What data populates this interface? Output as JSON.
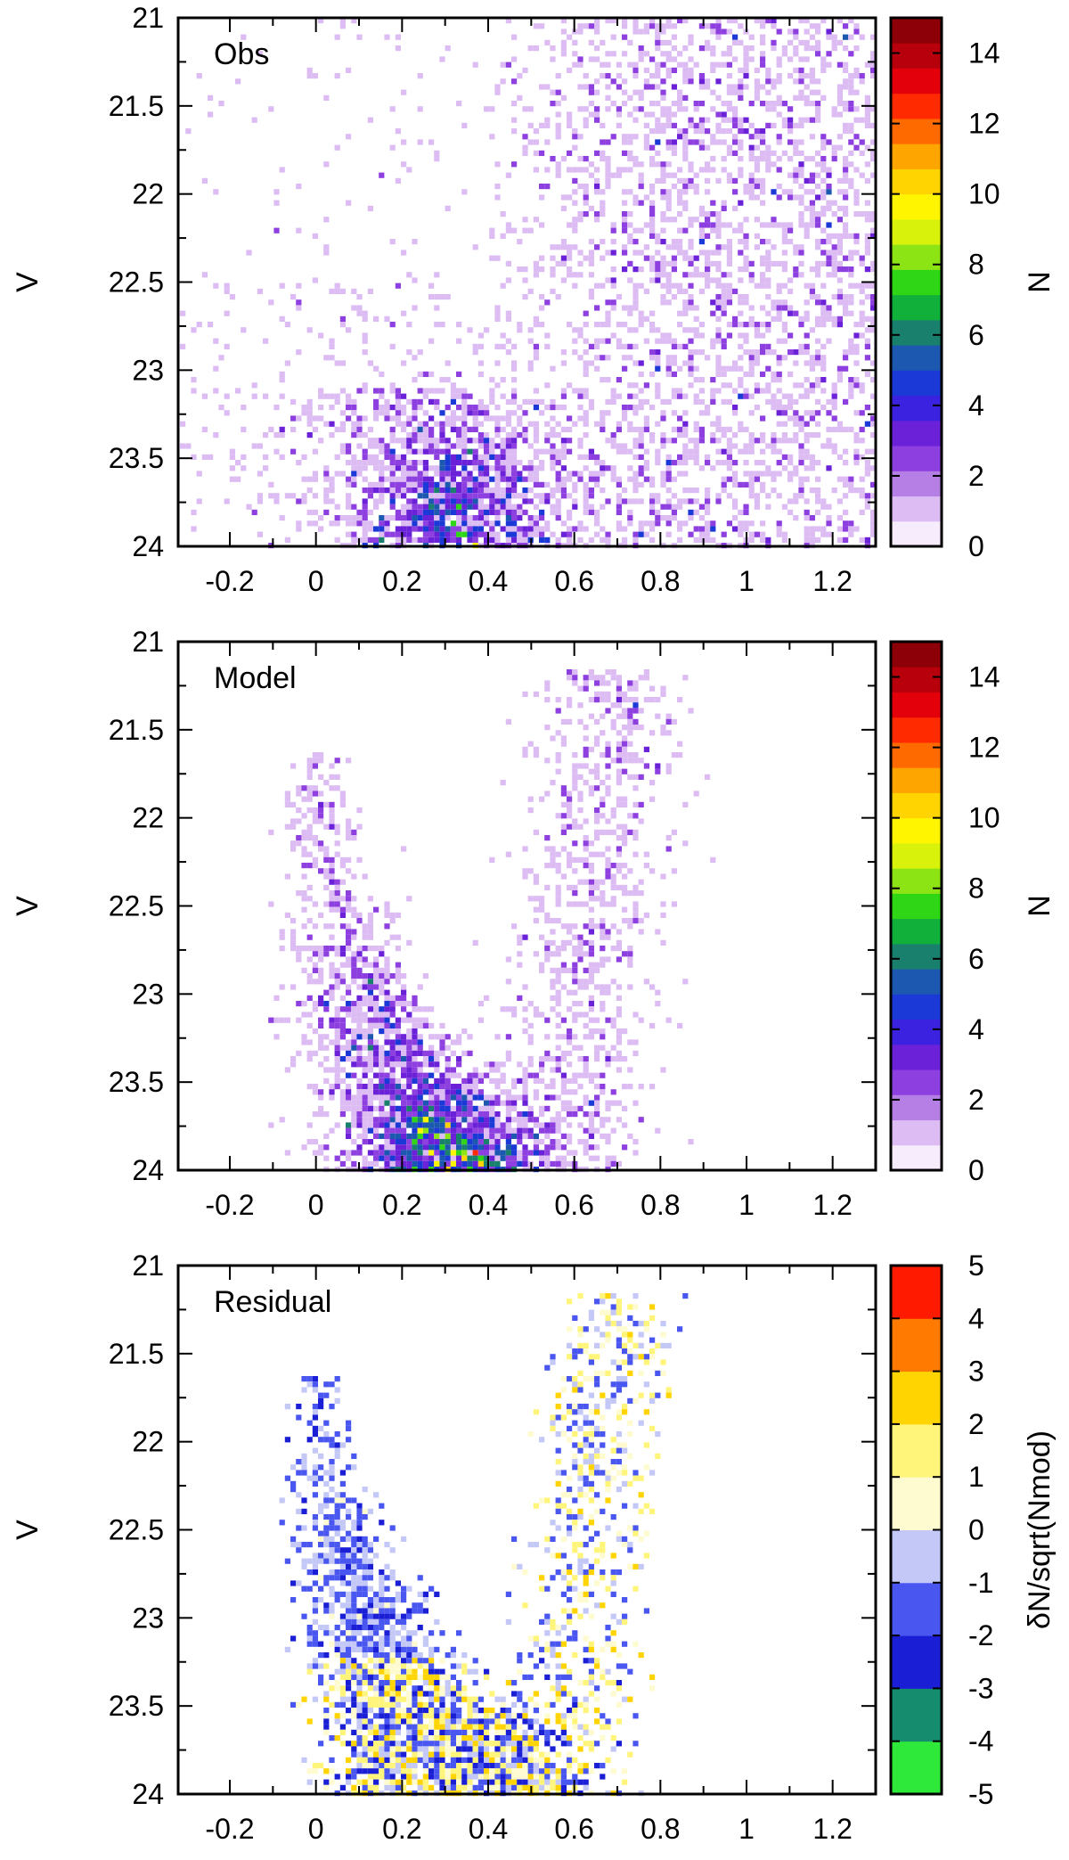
{
  "chart_data": [
    {
      "type": "heatmap",
      "title": "",
      "panel_label": "Obs",
      "xlabel": "",
      "ylabel": "V",
      "xlim": [
        -0.32,
        1.3
      ],
      "ylim": [
        24,
        21
      ],
      "x_ticks": [
        -0.2,
        0,
        0.2,
        0.4,
        0.6,
        0.8,
        1,
        1.2
      ],
      "x_tick_labels": [
        "-0.2",
        "0",
        "0.2",
        "0.4",
        "0.6",
        "0.8",
        "1",
        "1.2"
      ],
      "y_ticks": [
        21,
        21.5,
        22,
        22.5,
        23,
        23.5,
        24
      ],
      "y_tick_labels": [
        "21",
        "21.5",
        "22",
        "22.5",
        "23",
        "23.5",
        "24"
      ],
      "colorbar": {
        "label": "N",
        "range": [
          0,
          15
        ],
        "ticks": [
          0,
          2,
          4,
          6,
          8,
          10,
          12,
          14
        ],
        "tick_labels": [
          "0",
          "2",
          "4",
          "6",
          "8",
          "10",
          "12",
          "14"
        ],
        "colors": [
          "#f6ecfb",
          "#dcbcf3",
          "#b67fe6",
          "#8e3fe0",
          "#6b21d8",
          "#3b22e0",
          "#1a39d6",
          "#1d58b0",
          "#19806d",
          "#10b03a",
          "#2ed616",
          "#8de414",
          "#d9f20b",
          "#fff500",
          "#ffd400",
          "#ffa500",
          "#ff6a00",
          "#ff2a00",
          "#e3000b",
          "#b8000c",
          "#8e0007"
        ]
      },
      "density_description": "sparse field everywhere, concentrated main-sequence turnoff near color 0.2–0.45, V 23.3–24; broad red plume 0.45–1.3"
    },
    {
      "type": "heatmap",
      "title": "",
      "panel_label": "Model",
      "xlabel": "",
      "ylabel": "V",
      "xlim": [
        -0.32,
        1.3
      ],
      "ylim": [
        24,
        21
      ],
      "x_ticks": [
        -0.2,
        0,
        0.2,
        0.4,
        0.6,
        0.8,
        1,
        1.2
      ],
      "x_tick_labels": [
        "-0.2",
        "0",
        "0.2",
        "0.4",
        "0.6",
        "0.8",
        "1",
        "1.2"
      ],
      "y_ticks": [
        21,
        21.5,
        22,
        22.5,
        23,
        23.5,
        24
      ],
      "y_tick_labels": [
        "21",
        "21.5",
        "22",
        "22.5",
        "23",
        "23.5",
        "24"
      ],
      "colorbar": {
        "label": "N",
        "range": [
          0,
          15
        ],
        "ticks": [
          0,
          2,
          4,
          6,
          8,
          10,
          12,
          14
        ],
        "tick_labels": [
          "0",
          "2",
          "4",
          "6",
          "8",
          "10",
          "12",
          "14"
        ],
        "colors": [
          "#f6ecfb",
          "#dcbcf3",
          "#b67fe6",
          "#8e3fe0",
          "#6b21d8",
          "#3b22e0",
          "#1a39d6",
          "#1d58b0",
          "#19806d",
          "#10b03a",
          "#2ed616",
          "#8de414",
          "#d9f20b",
          "#fff500",
          "#ffd400",
          "#ffa500",
          "#ff6a00",
          "#ff2a00",
          "#e3000b",
          "#b8000c",
          "#8e0007"
        ]
      },
      "density_description": "V-shaped distribution: blue branch from color ~0 at V 22 down to 0.2–0.5 at V 24; red branch near 0.5–0.8 from V 21.2 to 24"
    },
    {
      "type": "heatmap",
      "title": "",
      "panel_label": "Residual",
      "xlabel": "",
      "ylabel": "V",
      "xlim": [
        -0.32,
        1.3
      ],
      "ylim": [
        24,
        21
      ],
      "x_ticks": [
        -0.2,
        0,
        0.2,
        0.4,
        0.6,
        0.8,
        1,
        1.2
      ],
      "x_tick_labels": [
        "-0.2",
        "0",
        "0.2",
        "0.4",
        "0.6",
        "0.8",
        "1",
        "1.2"
      ],
      "y_ticks": [
        21,
        21.5,
        22,
        22.5,
        23,
        23.5,
        24
      ],
      "y_tick_labels": [
        "21",
        "21.5",
        "22",
        "22.5",
        "23",
        "23.5",
        "24"
      ],
      "colorbar": {
        "label": "δN/sqrt(Nmod)",
        "range": [
          -5,
          5
        ],
        "ticks": [
          -5,
          -4,
          -3,
          -2,
          -1,
          0,
          1,
          2,
          3,
          4,
          5
        ],
        "tick_labels": [
          "-5",
          "-4",
          "-3",
          "-2",
          "-1",
          "0",
          "1",
          "2",
          "3",
          "4",
          "5"
        ],
        "colors": [
          "#2ee83a",
          "#158c6e",
          "#1a1fd6",
          "#4a56f0",
          "#c4c8f6",
          "#fffbd0",
          "#fff57a",
          "#ffd400",
          "#ff7a00",
          "#ff1a00"
        ]
      },
      "density_description": "same V-shaped footprint as model; mostly negative (blue) on the blue branch and upper region, mixed positive (yellow/orange/red) near turnoff and red branch"
    }
  ]
}
